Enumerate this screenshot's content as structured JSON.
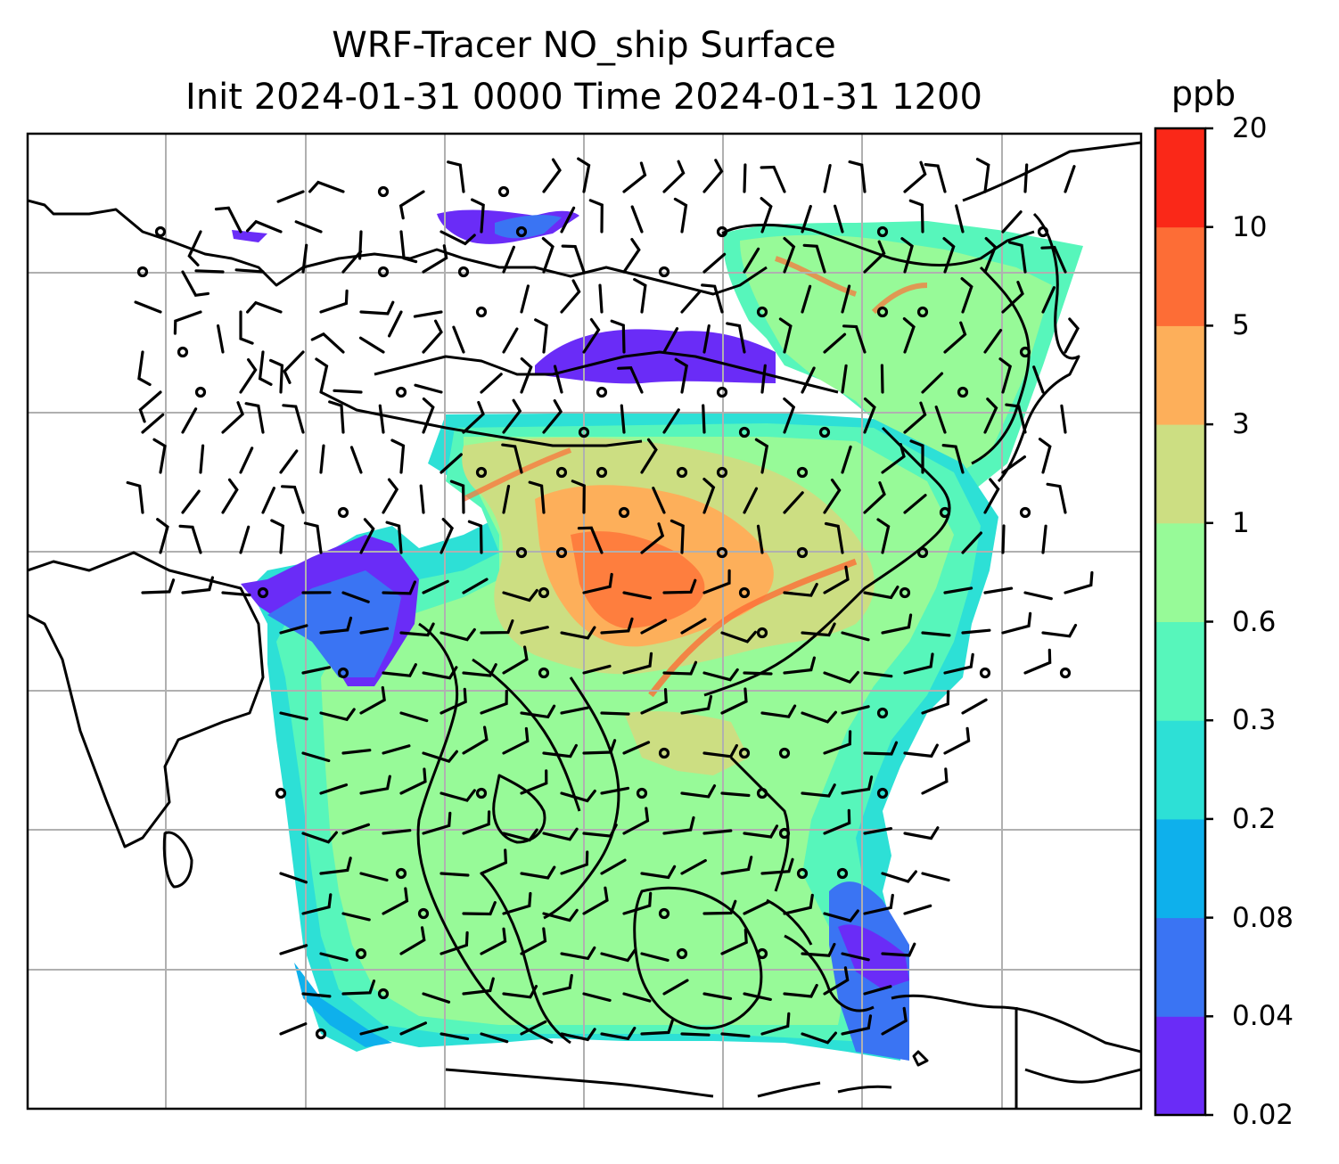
{
  "title": {
    "line1": "WRF-Tracer NO_ship Surface",
    "line2": "Init 2024-01-31 0000 Time 2024-01-31 1200"
  },
  "colorbar": {
    "unit": "ppb",
    "levels": [
      "0.02",
      "0.04",
      "0.08",
      "0.2",
      "0.3",
      "0.6",
      "1",
      "3",
      "5",
      "10",
      "20"
    ],
    "colors": [
      "#6a2cf7",
      "#3a74f3",
      "#0eb0ec",
      "#2de0d6",
      "#57f6bb",
      "#97fa98",
      "#ccde82",
      "#fdaf5a",
      "#fd6d36",
      "#fa2818"
    ]
  },
  "map": {
    "gridlines": "on",
    "coastlines": "on",
    "field_colors": {
      "dominant": "#97fa98",
      "high": "#fd6d36",
      "mid": "#ccde82",
      "low": "#57f6bb",
      "edge": "#2de0d6",
      "fringe": "#6a2cf7"
    },
    "overlay": "wind barbs and calm circles"
  }
}
